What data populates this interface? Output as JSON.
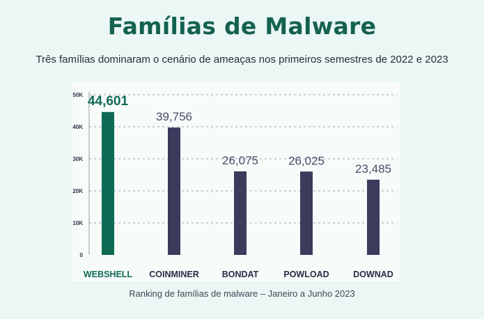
{
  "header": {
    "title": "Famílias de Malware",
    "subtitle": "Três famílias dominaram o cenário de ameaças nos primeiros semestres de 2022 e 2023"
  },
  "caption": "Ranking de famílias de malware – Janeiro a Junho 2023",
  "colors": {
    "highlight": "#0f6b54",
    "bar": "#3b3b5c",
    "background": "#eaf7f4"
  },
  "chart_data": {
    "type": "bar",
    "categories": [
      "WEBSHELL",
      "COINMINER",
      "BONDAT",
      "POWLOAD",
      "DOWNAD"
    ],
    "values": [
      44601,
      39756,
      26075,
      26025,
      23485
    ],
    "value_labels": [
      "44,601",
      "39,756",
      "26,075",
      "26,025",
      "23,485"
    ],
    "ylim": [
      0,
      50000
    ],
    "yticks": [
      0,
      10000,
      20000,
      30000,
      40000,
      50000
    ],
    "ytick_labels": [
      "0",
      "10K",
      "20K",
      "30K",
      "40K",
      "50K"
    ],
    "highlight_index": 0,
    "grid": true,
    "legend": "none"
  }
}
